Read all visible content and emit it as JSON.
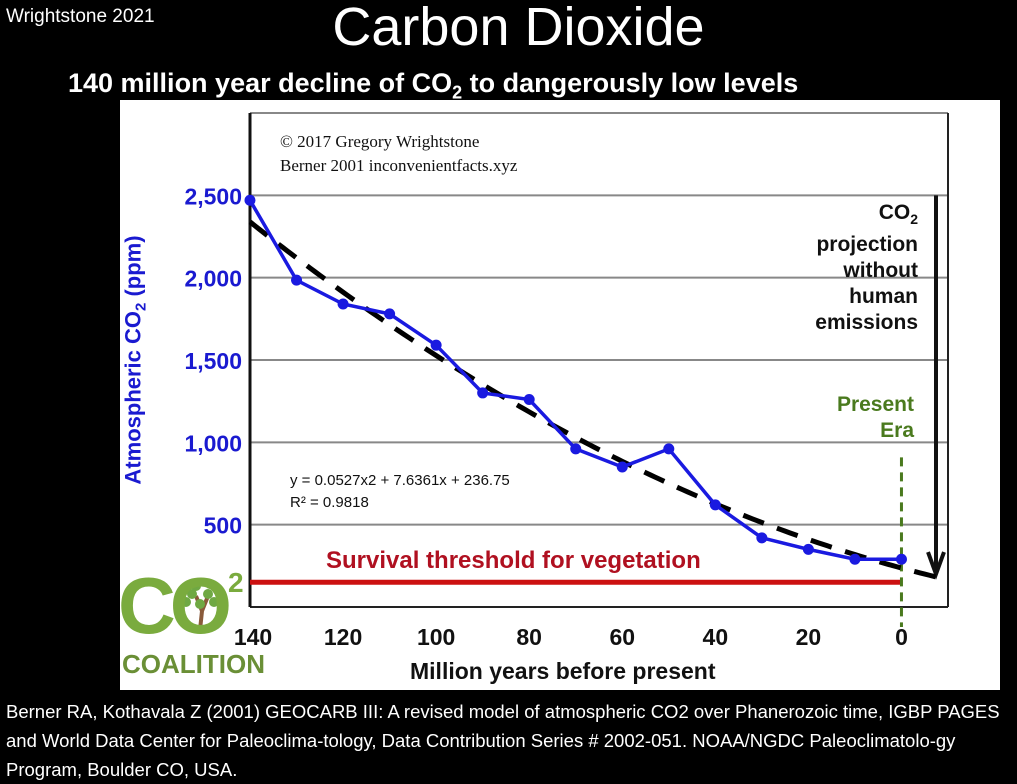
{
  "header": {
    "credit": "Wrightstone 2021",
    "title": "Carbon Dioxide",
    "subtitle_pre": "140 million year decline of CO",
    "subtitle_sub": "2",
    "subtitle_post": " to dangerously low levels"
  },
  "chart_data": {
    "type": "line",
    "ylabel_pre": "Atmospheric CO",
    "ylabel_sub": "2",
    "ylabel_post": " (ppm)",
    "xlabel": "Million years before present",
    "xlim": [
      140,
      -10
    ],
    "ylim": [
      0,
      3000
    ],
    "x_ticks": [
      140,
      120,
      100,
      80,
      60,
      40,
      20,
      0
    ],
    "x_tick_labels": [
      "140",
      "120",
      "100",
      "80",
      "60",
      "40",
      "20",
      "0"
    ],
    "y_ticks": [
      500,
      1000,
      1500,
      2000,
      2500
    ],
    "y_tick_labels": [
      "500",
      "1,000",
      "1,500",
      "2,000",
      "2,500"
    ],
    "gridlines": [
      500,
      1000,
      1500,
      2000,
      2500,
      3000
    ],
    "grid": true,
    "series": [
      {
        "x": [
          140,
          130,
          120,
          110,
          100,
          90,
          80,
          70,
          60,
          50,
          40,
          30,
          20,
          10,
          0
        ],
        "y": [
          2470,
          1985,
          1840,
          1780,
          1590,
          1300,
          1260,
          960,
          850,
          960,
          620,
          420,
          350,
          290,
          290
        ],
        "color": "#1a1ae0"
      }
    ],
    "trendline": {
      "coefficients": [
        0.0527,
        7.6361,
        236.75
      ],
      "x_range": [
        140,
        -10
      ],
      "color": "#000000",
      "equation": "y = 0.0527x2 + 7.6361x + 236.75",
      "r_squared": "R² = 0.9818"
    },
    "threshold": {
      "value": 150,
      "label": "Survival threshold for vegetation",
      "color": "#cc1111"
    },
    "present_marker": {
      "x": 0,
      "label_line1": "Present",
      "label_line2": "Era",
      "color": "#4a7a1e"
    },
    "projection": {
      "line1_pre": "CO",
      "line1_sub": "2",
      "lines": [
        "projection",
        "without",
        "human",
        "emissions"
      ],
      "arrow_from": 2500,
      "arrow_to": 200
    },
    "copyright_line1": "© 2017 Gregory Wrightstone",
    "copyright_line2": "Berner 2001 inconvenientfacts.xyz"
  },
  "logo": {
    "co": "CO",
    "two": "2",
    "name": "COALITION"
  },
  "citation": "Berner RA, Kothavala Z (2001) GEOCARB III: A revised model of atmospheric CO2 over Phanerozoic time, IGBP PAGES and World Data Center for Paleoclima-tology, Data Contribution Series # 2002-051. NOAA/NGDC Paleoclimatolo-gy Program, Boulder CO, USA."
}
